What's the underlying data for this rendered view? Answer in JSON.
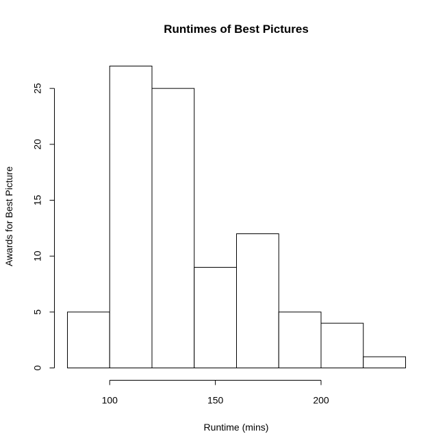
{
  "chart_data": {
    "type": "bar",
    "subtype": "histogram",
    "title": "Runtimes of Best Pictures",
    "xlabel": "Runtime (mins)",
    "ylabel": "Awards for Best Picture",
    "bins": [
      {
        "start": 80,
        "end": 100,
        "count": 5
      },
      {
        "start": 100,
        "end": 120,
        "count": 27
      },
      {
        "start": 120,
        "end": 140,
        "count": 25
      },
      {
        "start": 140,
        "end": 160,
        "count": 9
      },
      {
        "start": 160,
        "end": 180,
        "count": 12
      },
      {
        "start": 180,
        "end": 200,
        "count": 5
      },
      {
        "start": 200,
        "end": 220,
        "count": 4
      },
      {
        "start": 220,
        "end": 240,
        "count": 1
      }
    ],
    "xlim": [
      80,
      240
    ],
    "ylim": [
      0,
      27
    ],
    "xticks": [
      100,
      150,
      200
    ],
    "yticks": [
      0,
      5,
      10,
      15,
      20,
      25
    ],
    "bar_fill": "#ffffff",
    "bar_stroke": "#000000",
    "grid": false,
    "legend": "none"
  }
}
